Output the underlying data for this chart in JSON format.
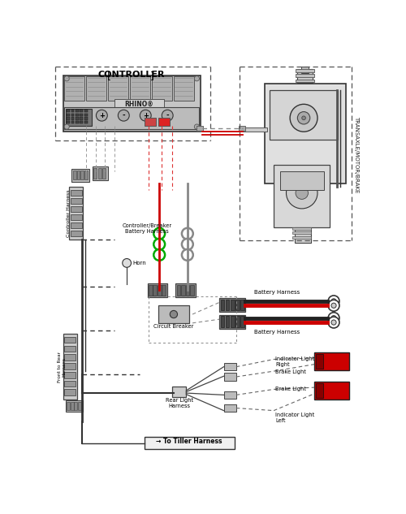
{
  "title": "CONTROLLER",
  "title2": "TRANSAXLE/MOTOR/BRAKE",
  "bg_color": "#ffffff",
  "line_color": "#000000",
  "red_color": "#cc0000",
  "green_color": "#00aa00",
  "gray_color": "#888888",
  "dashed_color": "#999999",
  "labels": {
    "controller_harness": "Controller Harness",
    "controller_breaker": "Controller/Breaker\nBattery Harness",
    "horn": "Horn",
    "circuit_breaker": "Circuit Breaker",
    "front_to_rear": "Front to Rear\nHarness",
    "battery_harness_top": "Battery Harness",
    "battery_harness_bot": "Battery Harness",
    "indicator_right": "Indicator Light\nRight",
    "brake_light_top": "Brake Light",
    "brake_light_bot": "Brake Light",
    "indicator_left": "Indicator Light\nLeft",
    "rear_light": "Rear Light\nHarness",
    "tiller": "To Tiller Harness"
  }
}
